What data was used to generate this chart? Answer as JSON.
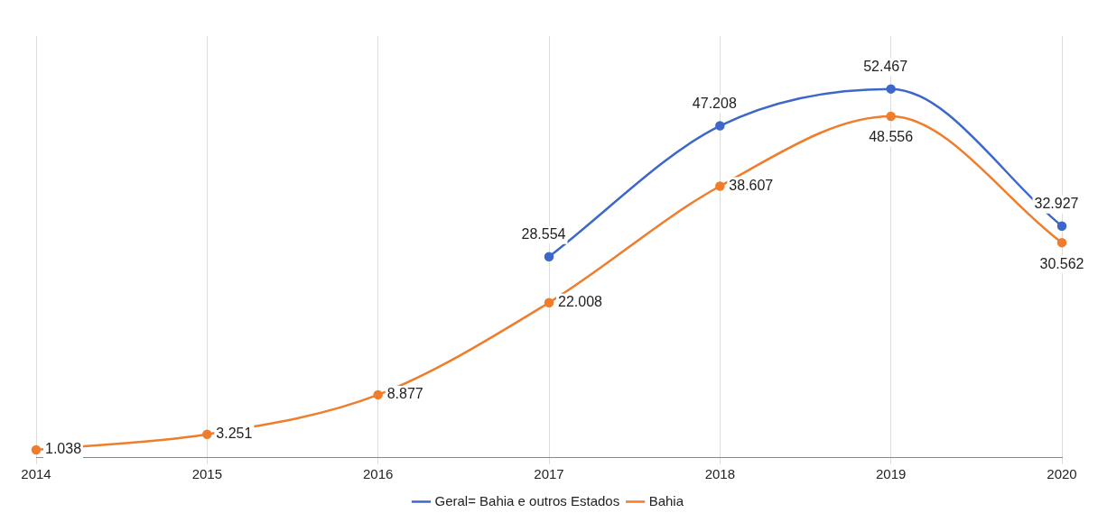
{
  "chart_data": {
    "type": "line",
    "categories": [
      "2014",
      "2015",
      "2016",
      "2017",
      "2018",
      "2019",
      "2020"
    ],
    "series": [
      {
        "name": "Geral= Bahia e outros Estados",
        "color": "#3d67c9",
        "values": [
          null,
          null,
          null,
          28554,
          47208,
          52467,
          32927
        ],
        "value_labels": [
          null,
          null,
          null,
          "28.554",
          "47.208",
          "52.467",
          "32.927"
        ]
      },
      {
        "name": "Bahia",
        "color": "#ef7d2b",
        "values": [
          1038,
          3251,
          8877,
          22008,
          38607,
          48556,
          30562
        ],
        "value_labels": [
          "1.038",
          "3.251",
          "8.877",
          "22.008",
          "38.607",
          "48.556",
          "30.562"
        ]
      }
    ],
    "grid": "x",
    "legend": "bottom",
    "tick_labels": "x",
    "marker": "circle",
    "line_style": "solid"
  }
}
